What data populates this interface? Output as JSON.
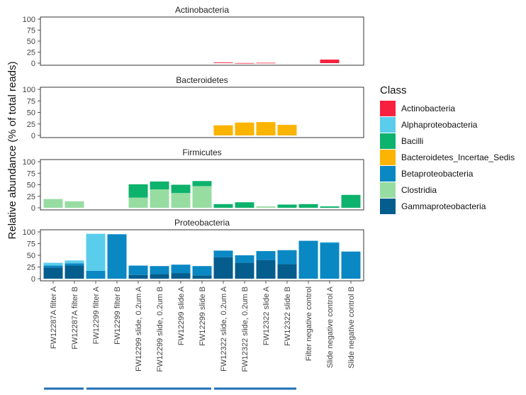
{
  "chart_data": {
    "type": "bar",
    "stacked": true,
    "ylabel": "Relative abundance (% of total reads)",
    "ylim": [
      0,
      100
    ],
    "yticks": [
      0,
      25,
      50,
      75,
      100
    ],
    "legend": {
      "title": "Class",
      "position": "right",
      "entries": [
        {
          "name": "Actinobacteria",
          "color": "#F8203F"
        },
        {
          "name": "Alphaproteobacteria",
          "color": "#5ACDEC"
        },
        {
          "name": "Bacilli",
          "color": "#0DB26C"
        },
        {
          "name": "Bacteroidetes_Incertae_Sedis",
          "color": "#FBB400"
        },
        {
          "name": "Betaproteobacteria",
          "color": "#0A88C4"
        },
        {
          "name": "Clostridia",
          "color": "#97DDA2"
        },
        {
          "name": "Gammaproteobacteria",
          "color": "#045D8C"
        }
      ]
    },
    "categories": [
      "FW12287A filter A",
      "FW12287A filter B",
      "FW12299 filter A",
      "FW12299 filter B",
      "FW12299 slide, 0.2um A",
      "FW12299 slide, 0.2um B",
      "FW12299 slide A",
      "FW12299 slide B",
      "FW12322 slide, 0.2um A",
      "FW12322 slide, 0.2um B",
      "FW12322 slide A",
      "FW12322 slide B",
      "Filter negative control",
      "Slide negative control A",
      "Slide negative control B"
    ],
    "panels": [
      {
        "title": "Actinobacteria",
        "series": [
          {
            "name": "Actinobacteria",
            "values": [
              0,
              0,
              0,
              0,
              0,
              0,
              0,
              0,
              1.5,
              0.3,
              0.8,
              0,
              0,
              8,
              0
            ]
          }
        ]
      },
      {
        "title": "Bacteroidetes",
        "series": [
          {
            "name": "Bacteroidetes_Incertae_Sedis",
            "values": [
              0,
              0,
              0,
              0,
              0,
              0,
              0,
              0,
              22,
              28,
              29,
              23,
              0,
              0,
              0
            ]
          }
        ]
      },
      {
        "title": "Firmicutes",
        "series": [
          {
            "name": "Clostridia",
            "values": [
              19,
              14,
              0,
              0,
              22,
              40,
              32,
              47,
              0,
              0,
              3,
              0,
              0,
              0,
              0
            ]
          },
          {
            "name": "Bacilli",
            "values": [
              0,
              0,
              0,
              0,
              29,
              17,
              18,
              11,
              8,
              12,
              0,
              7,
              8,
              3,
              28
            ]
          }
        ]
      },
      {
        "title": "Proteobacteria",
        "series": [
          {
            "name": "Gammaproteobacteria",
            "values": [
              24,
              28,
              0,
              0,
              8,
              10,
              12,
              7,
              46,
              34,
              40,
              31,
              0,
              0,
              0
            ]
          },
          {
            "name": "Betaproteobacteria",
            "values": [
              4,
              5,
              17,
              95,
              20,
              17,
              18,
              20,
              14,
              16,
              19,
              30,
              81,
              77,
              58
            ]
          },
          {
            "name": "Alphaproteobacteria",
            "values": [
              6,
              6,
              79,
              0,
              0,
              0,
              0,
              0,
              0,
              0,
              0,
              0,
              0,
              1,
              0
            ]
          }
        ]
      }
    ],
    "groups": [
      {
        "from": 0,
        "to": 1,
        "color": "#1F6FB7"
      },
      {
        "from": 2,
        "to": 7,
        "color": "#1F6FB7"
      },
      {
        "from": 8,
        "to": 11,
        "color": "#1F6FB7"
      }
    ]
  }
}
